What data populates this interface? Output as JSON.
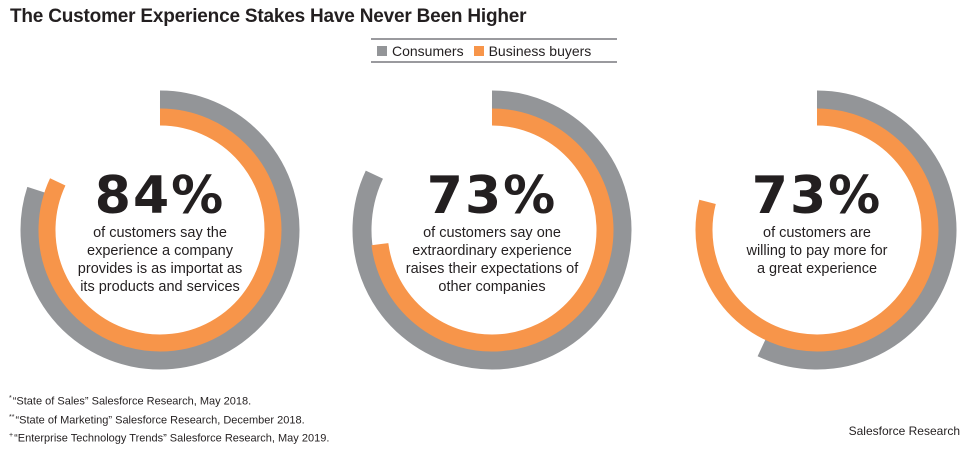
{
  "title": "The Customer Experience Stakes Have Never Been Higher",
  "legend": {
    "items": [
      {
        "label": "Consumers",
        "color": "#939598"
      },
      {
        "label": "Business buyers",
        "color": "#f7954a"
      }
    ]
  },
  "chart_data": [
    {
      "type": "donut",
      "value_text": "84%",
      "description": "of customers say the\nexperience a company\nprovides is as importat as\nits products and services",
      "series": [
        {
          "name": "Consumers",
          "value": 80
        },
        {
          "name": "Business buyers",
          "value": 82
        }
      ]
    },
    {
      "type": "donut",
      "value_text": "73%",
      "description": "of customers say one\nextraordinary experience\nraises their expectations of\nother companies",
      "series": [
        {
          "name": "Consumers",
          "value": 82
        },
        {
          "name": "Business buyers",
          "value": 73
        }
      ]
    },
    {
      "type": "donut",
      "value_text": "73%",
      "description": "of customers are\nwilling to pay more for\na great experience",
      "series": [
        {
          "name": "Consumers",
          "value": 57
        },
        {
          "name": "Business buyers",
          "value": 79
        }
      ]
    }
  ],
  "footnotes": [
    {
      "mark": "*",
      "text": "“State of Sales” Salesforce Research, May 2018."
    },
    {
      "mark": "**",
      "text": "“State of Marketing” Salesforce Research, December 2018."
    },
    {
      "mark": "+",
      "text": "“Enterprise Technology Trends” Salesforce Research, May 2019."
    }
  ],
  "source": "Salesforce Research"
}
